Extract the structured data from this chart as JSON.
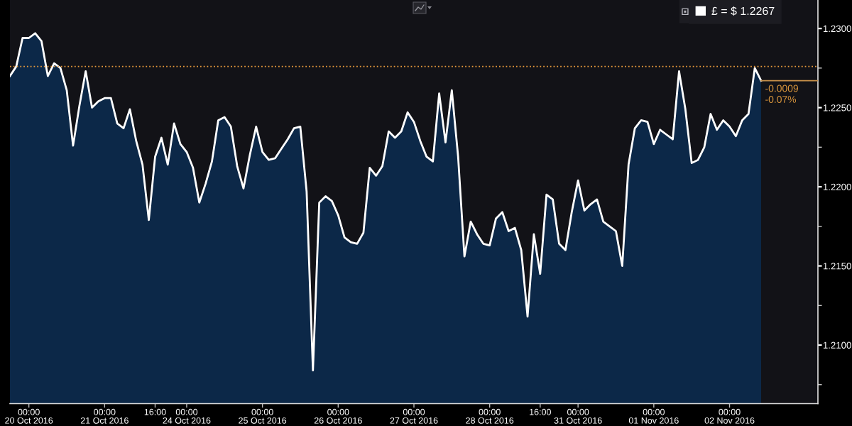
{
  "chart_data": {
    "type": "area",
    "categories": [
      null,
      null,
      null,
      "00:00\n20 Oct 2016",
      null,
      null,
      null,
      null,
      null,
      null,
      null,
      null,
      null,
      null,
      null,
      "00:00\n21 Oct 2016",
      null,
      null,
      null,
      null,
      null,
      null,
      null,
      "16:00",
      null,
      null,
      null,
      null,
      "00:00\n24 Oct 2016",
      null,
      null,
      null,
      null,
      null,
      null,
      null,
      null,
      null,
      null,
      null,
      "00:00\n25 Oct 2016",
      null,
      null,
      null,
      null,
      null,
      null,
      null,
      null,
      null,
      null,
      null,
      "00:00\n26 Oct 2016",
      null,
      null,
      null,
      null,
      null,
      null,
      null,
      null,
      null,
      null,
      null,
      "00:00\n27 Oct 2016",
      null,
      null,
      null,
      null,
      null,
      null,
      null,
      null,
      null,
      null,
      null,
      "00:00\n28 Oct 2016",
      null,
      null,
      null,
      null,
      null,
      null,
      null,
      "16:00",
      null,
      null,
      null,
      null,
      null,
      "00:00\n31 Oct 2016",
      null,
      null,
      null,
      null,
      null,
      null,
      null,
      null,
      null,
      null,
      null,
      "00:00\n01 Nov 2016",
      null,
      null,
      null,
      null,
      null,
      null,
      null,
      null,
      null,
      null,
      null,
      "00:00\n02 Nov 2016",
      null,
      null,
      null,
      null,
      null,
      null,
      null,
      null,
      null,
      null,
      null,
      null,
      null,
      null
    ],
    "ylim": [
      1.2063,
      1.2318
    ],
    "yticks": [
      {
        "value": 1.21,
        "label": "1.2100"
      },
      {
        "value": 1.215,
        "label": "1.2150"
      },
      {
        "value": 1.22,
        "label": "1.2200"
      },
      {
        "value": 1.225,
        "label": "1.2250"
      },
      {
        "value": 1.23,
        "label": "1.2300"
      },
      {
        "value": 1.2075,
        "label": null
      },
      {
        "value": 1.2125,
        "label": null
      },
      {
        "value": 1.2175,
        "label": null
      },
      {
        "value": 1.2225,
        "label": null
      },
      {
        "value": 1.2275,
        "label": null
      }
    ],
    "series": [
      {
        "name": "£ = $ 1.2267",
        "color": "#ffffff",
        "values": [
          1.227,
          1.2276,
          1.2294,
          1.2294,
          1.2297,
          1.2292,
          1.227,
          1.2278,
          1.2275,
          1.2261,
          1.2226,
          1.2251,
          1.2273,
          1.225,
          1.2254,
          1.2256,
          1.2256,
          1.224,
          1.2237,
          1.2249,
          1.2229,
          1.2214,
          1.2179,
          1.2219,
          1.2231,
          1.2214,
          1.224,
          1.2227,
          1.2222,
          1.2212,
          1.219,
          1.2202,
          1.2216,
          1.2242,
          1.2244,
          1.2238,
          1.2213,
          1.2199,
          1.222,
          1.2238,
          1.2222,
          1.2217,
          1.2218,
          1.2224,
          1.223,
          1.2237,
          1.2238,
          1.2197,
          1.2084,
          1.219,
          1.2194,
          1.2191,
          1.2182,
          1.2168,
          1.2165,
          1.2164,
          1.2171,
          1.2212,
          1.2207,
          1.2213,
          1.2235,
          1.2231,
          1.2235,
          1.2247,
          1.2241,
          1.2229,
          1.2219,
          1.2216,
          1.2259,
          1.2228,
          1.2261,
          1.2219,
          1.2156,
          1.2178,
          1.217,
          1.2164,
          1.2163,
          1.218,
          1.2184,
          1.2172,
          1.2174,
          1.216,
          1.2118,
          1.217,
          1.2145,
          1.2195,
          1.2192,
          1.2164,
          1.216,
          1.2184,
          1.2204,
          1.2185,
          1.2189,
          1.2192,
          1.2178,
          1.2175,
          1.2172,
          1.215,
          1.2214,
          1.2237,
          1.2242,
          1.2241,
          1.2227,
          1.2236,
          1.2233,
          1.223,
          1.2273,
          1.2249,
          1.2215,
          1.2217,
          1.2225,
          1.2246,
          1.2236,
          1.2242,
          1.2238,
          1.2232,
          1.2242,
          1.2246,
          1.2275,
          1.2267,
          null,
          null,
          null,
          null,
          null,
          null,
          null,
          null,
          null
        ]
      },
      {
        "type": "line",
        "color": "#c8914a",
        "values": [
          null,
          null,
          null,
          null,
          null,
          null,
          null,
          null,
          null,
          null,
          null,
          null,
          null,
          null,
          null,
          null,
          null,
          null,
          null,
          null,
          null,
          null,
          null,
          null,
          null,
          null,
          null,
          null,
          null,
          null,
          null,
          null,
          null,
          null,
          null,
          null,
          null,
          null,
          null,
          null,
          null,
          null,
          null,
          null,
          null,
          null,
          null,
          null,
          null,
          null,
          null,
          null,
          null,
          null,
          null,
          null,
          null,
          null,
          null,
          null,
          null,
          null,
          null,
          null,
          null,
          null,
          null,
          null,
          null,
          null,
          null,
          null,
          null,
          null,
          null,
          null,
          null,
          null,
          null,
          null,
          null,
          null,
          null,
          null,
          null,
          null,
          null,
          null,
          null,
          null,
          null,
          null,
          null,
          null,
          null,
          null,
          null,
          null,
          null,
          null,
          null,
          null,
          null,
          null,
          null,
          null,
          null,
          null,
          null,
          null,
          null,
          null,
          null,
          null,
          null,
          null,
          null,
          null,
          null,
          1.2267,
          1.2267,
          1.2267,
          1.2267,
          1.2267,
          1.2267,
          1.2267,
          1.2267,
          1.2267,
          1.2267
        ]
      }
    ],
    "ref_lines": [
      {
        "axis": "y",
        "value": 1.2276,
        "color": "#e89a3c",
        "line_style": "dotted"
      }
    ],
    "annotations": [
      "-0.0009\n-0.07%"
    ],
    "legend": "top right"
  }
}
